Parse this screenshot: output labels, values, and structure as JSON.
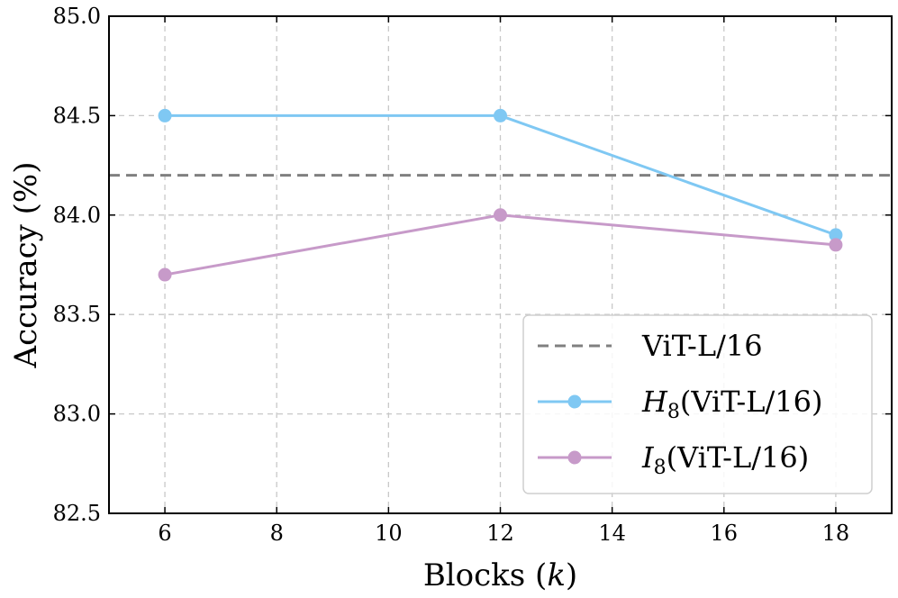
{
  "chart_data": {
    "type": "line",
    "xlabel": "Blocks (k)",
    "xlabel_prefix": "Blocks (",
    "xlabel_var": "k",
    "xlabel_suffix": ")",
    "ylabel": "Accuracy (%)",
    "xlim": [
      5,
      19
    ],
    "ylim": [
      82.5,
      85.0
    ],
    "xticks": [
      6,
      8,
      10,
      12,
      14,
      16,
      18
    ],
    "yticks": [
      82.5,
      83.0,
      83.5,
      84.0,
      84.5,
      85.0
    ],
    "grid": true,
    "legend_position": "bottom-right",
    "baseline": {
      "name": "ViT-L/16",
      "y": 84.2,
      "color": "#808080",
      "style": "dashed"
    },
    "series": [
      {
        "name": "H8(ViT-L/16)",
        "symbol": "H",
        "subscript": "8",
        "suffix": "(ViT-L/16)",
        "color": "#7fc8f3",
        "x": [
          6,
          12,
          18
        ],
        "y": [
          84.5,
          84.5,
          83.9
        ]
      },
      {
        "name": "I8(ViT-L/16)",
        "symbol": "I",
        "subscript": "8",
        "suffix": "(ViT-L/16)",
        "color": "#c79ac9",
        "x": [
          6,
          12,
          18
        ],
        "y": [
          83.7,
          84.0,
          83.85
        ]
      }
    ]
  }
}
